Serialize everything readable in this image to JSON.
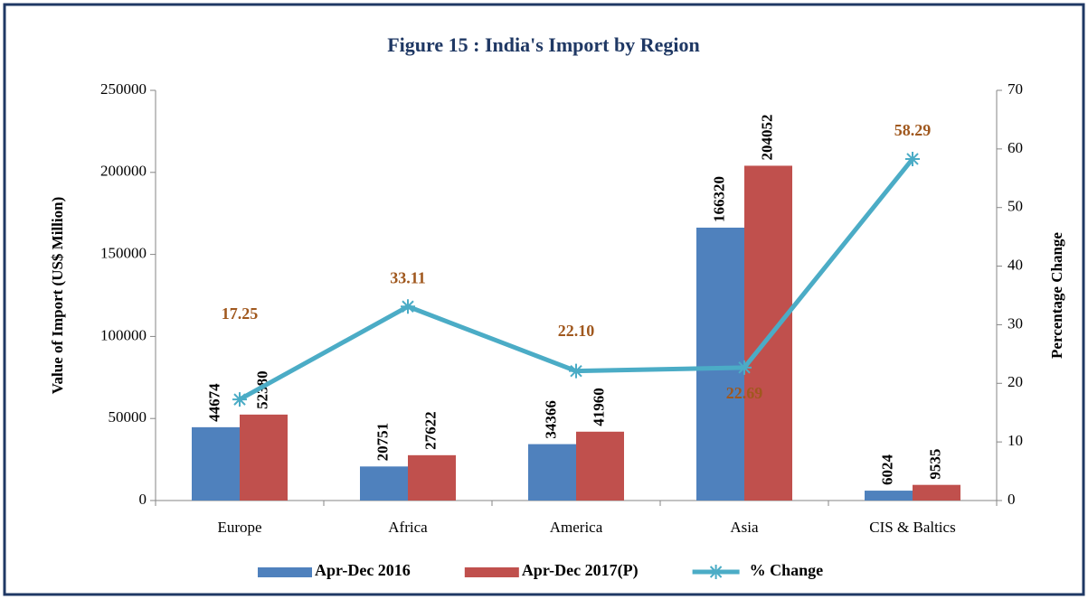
{
  "chart_data": {
    "type": "bar",
    "title": "Figure 15 : India's Import by Region",
    "y_label": "Value of Import (US$ Million)",
    "y2_label": "Percentage Change",
    "categories": [
      "Europe",
      "Africa",
      "America",
      "Asia",
      "CIS & Baltics"
    ],
    "series": [
      {
        "name": "Apr-Dec 2016",
        "color": "#4f81bd",
        "values": [
          44674,
          20751,
          34366,
          166320,
          6024
        ]
      },
      {
        "name": "Apr-Dec 2017(P)",
        "color": "#c0504d",
        "values": [
          52380,
          27622,
          41960,
          204052,
          9535
        ]
      },
      {
        "name": "% Change",
        "color": "#4bacc6",
        "type": "line",
        "axis": "y2",
        "values": [
          17.25,
          33.11,
          22.1,
          22.69,
          58.29
        ],
        "value_labels": [
          "17.25",
          "33.11",
          "22.10",
          "22.69",
          "58.29"
        ],
        "label_color": "#a0581e"
      }
    ],
    "ylim": [
      0,
      250000
    ],
    "yticks": [
      0,
      50000,
      100000,
      150000,
      200000,
      250000
    ],
    "y2lim": [
      0,
      70
    ],
    "y2ticks": [
      0,
      10,
      20,
      30,
      40,
      50,
      60,
      70
    ],
    "legend": "bottom"
  }
}
